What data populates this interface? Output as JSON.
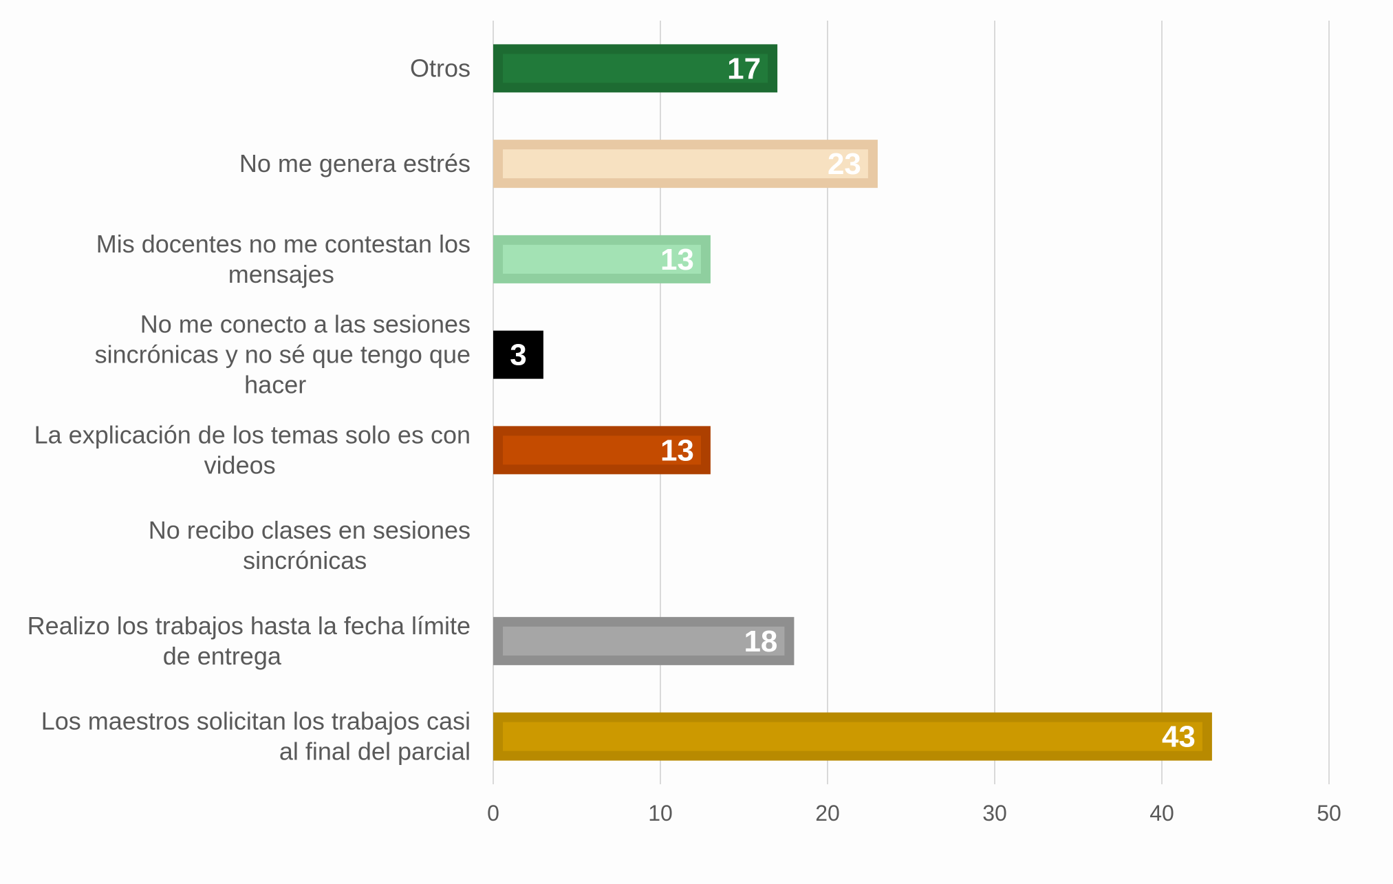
{
  "chart_data": {
    "type": "bar",
    "orientation": "horizontal",
    "categories": [
      "Otros",
      "No me genera estrés",
      "Mis docentes no me contestan los mensajes",
      "No me conecto a las sesiones sincrónicas y no sé que tengo que hacer",
      "La explicación de los temas solo es con videos",
      "No recibo clases en sesiones sincrónicas",
      "Realizo los trabajos hasta la fecha límite de entrega",
      "Los maestros solicitan los trabajos casi al final del parcial"
    ],
    "category_lines": [
      [
        "Otros"
      ],
      [
        "No me genera estrés"
      ],
      [
        "Mis docentes no me contestan los",
        "mensajes"
      ],
      [
        "No me conecto a las sesiones",
        "sincrónicas y no sé que tengo que",
        "hacer"
      ],
      [
        "La explicación de los temas solo es con",
        "videos"
      ],
      [
        "No recibo clases en sesiones",
        "sincrónicas"
      ],
      [
        "Realizo los trabajos hasta la fecha límite",
        "de entrega"
      ],
      [
        "Los maestros solicitan los trabajos casi",
        "al final del parcial"
      ]
    ],
    "values": [
      17,
      23,
      13,
      3,
      13,
      null,
      18,
      43
    ],
    "data_labels": [
      "17",
      "23",
      "13",
      "3",
      "13",
      "",
      "18",
      "43"
    ],
    "colors": [
      "#217a3a",
      "#f7e1c1",
      "#a3e2b4",
      "#000000",
      "#c44b00",
      "",
      "#a6a6a6",
      "#cc9900"
    ],
    "border_colors": [
      "#1d6b32",
      "#e8c9a4",
      "#8fcf9f",
      "#000000",
      "#ad4000",
      "",
      "#8f8f8f",
      "#b88a00"
    ],
    "xlim": [
      0,
      50
    ],
    "xticks": [
      0,
      10,
      20,
      30,
      40,
      50
    ],
    "grid": true,
    "legend": "none",
    "title": "",
    "xlabel": "",
    "ylabel": ""
  }
}
